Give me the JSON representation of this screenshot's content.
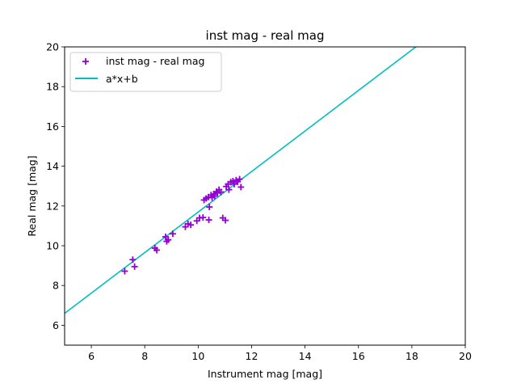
{
  "chart_data": {
    "type": "scatter",
    "title": "inst mag - real mag",
    "xlabel": "Instrument mag [mag]",
    "ylabel": "Real mag [mag]",
    "xlim": [
      5,
      20
    ],
    "ylim": [
      5,
      20
    ],
    "xticks": [
      "6",
      "8",
      "10",
      "12",
      "14",
      "16",
      "18",
      "20"
    ],
    "yticks": [
      "6",
      "8",
      "10",
      "12",
      "14",
      "16",
      "18",
      "20"
    ],
    "grid": false,
    "legend_position": "top-left",
    "series": [
      {
        "name": "inst mag - real mag",
        "kind": "scatter",
        "marker": "plus",
        "color": "#9400d3",
        "points": [
          [
            7.25,
            8.72
          ],
          [
            7.55,
            9.3
          ],
          [
            7.62,
            8.95
          ],
          [
            8.38,
            9.88
          ],
          [
            8.45,
            9.78
          ],
          [
            8.78,
            10.45
          ],
          [
            8.82,
            10.22
          ],
          [
            8.88,
            10.3
          ],
          [
            9.05,
            10.6
          ],
          [
            9.52,
            10.95
          ],
          [
            9.62,
            11.1
          ],
          [
            9.72,
            11.05
          ],
          [
            9.95,
            11.25
          ],
          [
            10.05,
            11.4
          ],
          [
            10.18,
            11.42
          ],
          [
            10.22,
            12.3
          ],
          [
            10.3,
            12.38
          ],
          [
            10.38,
            12.45
          ],
          [
            10.4,
            11.3
          ],
          [
            10.42,
            11.95
          ],
          [
            10.48,
            12.55
          ],
          [
            10.52,
            12.42
          ],
          [
            10.58,
            12.6
          ],
          [
            10.62,
            12.5
          ],
          [
            10.68,
            12.72
          ],
          [
            10.72,
            12.65
          ],
          [
            10.78,
            12.82
          ],
          [
            10.85,
            12.7
          ],
          [
            10.92,
            11.4
          ],
          [
            11.02,
            11.28
          ],
          [
            11.05,
            12.98
          ],
          [
            11.12,
            13.1
          ],
          [
            11.15,
            12.82
          ],
          [
            11.22,
            13.2
          ],
          [
            11.3,
            13.25
          ],
          [
            11.35,
            13.1
          ],
          [
            11.42,
            13.3
          ],
          [
            11.48,
            13.22
          ],
          [
            11.55,
            13.35
          ],
          [
            11.6,
            12.95
          ]
        ]
      },
      {
        "name": "a*x+b",
        "kind": "line",
        "color": "#00bfbf",
        "x": [
          5,
          18.15
        ],
        "y": [
          6.6,
          20.0
        ]
      }
    ]
  }
}
